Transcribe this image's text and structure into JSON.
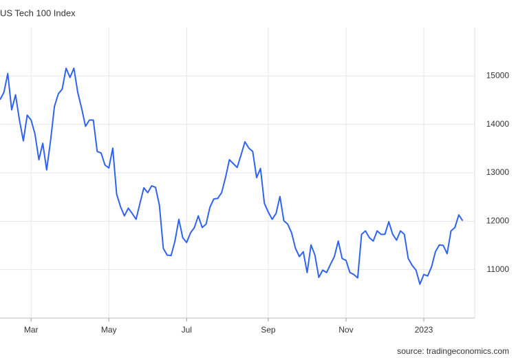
{
  "chart_data": {
    "type": "line",
    "title": "US Tech 100 Index",
    "source": "source: tradingeconomics.com",
    "categories": [
      null,
      null,
      null,
      null,
      null,
      null,
      null,
      null,
      "Mar",
      null,
      null,
      null,
      null,
      null,
      null,
      null,
      null,
      null,
      null,
      null,
      null,
      null,
      null,
      null,
      null,
      null,
      null,
      null,
      "May",
      null,
      null,
      null,
      null,
      null,
      null,
      null,
      null,
      null,
      null,
      null,
      null,
      null,
      null,
      null,
      null,
      null,
      null,
      null,
      "Jul",
      null,
      null,
      null,
      null,
      null,
      null,
      null,
      null,
      null,
      null,
      null,
      null,
      null,
      null,
      null,
      null,
      null,
      null,
      null,
      null,
      "Sep",
      null,
      null,
      null,
      null,
      null,
      null,
      null,
      null,
      null,
      null,
      null,
      null,
      null,
      null,
      null,
      null,
      null,
      null,
      null,
      "Nov",
      null,
      null,
      null,
      null,
      null,
      null,
      null,
      null,
      null,
      null,
      null,
      null,
      null,
      null,
      null,
      null,
      null,
      null,
      null,
      "2023",
      null,
      null,
      null,
      null,
      null,
      null,
      null,
      null,
      null,
      null
    ],
    "series": [
      {
        "name": "US Tech 100 Index",
        "color": "#2f62f0",
        "values": [
          14510,
          14660,
          15050,
          14300,
          14610,
          14090,
          13660,
          14190,
          14090,
          13800,
          13270,
          13610,
          13060,
          13660,
          14370,
          14630,
          14730,
          15160,
          14970,
          15160,
          14660,
          14330,
          13960,
          14090,
          14090,
          13440,
          13410,
          13160,
          13100,
          13510,
          12560,
          12300,
          12110,
          12270,
          12160,
          12040,
          12370,
          12690,
          12590,
          12730,
          12700,
          12330,
          11440,
          11300,
          11290,
          11590,
          12040,
          11660,
          11560,
          11760,
          11870,
          12110,
          11870,
          11940,
          12290,
          12460,
          12470,
          12590,
          12900,
          13270,
          13190,
          13110,
          13370,
          13640,
          13510,
          13440,
          12900,
          13090,
          12370,
          12190,
          12040,
          12160,
          12510,
          12010,
          11940,
          11760,
          11440,
          11270,
          11370,
          10940,
          11510,
          11300,
          10840,
          10990,
          10940,
          11110,
          11270,
          11590,
          11230,
          11190,
          10940,
          10900,
          10830,
          11730,
          11800,
          11660,
          11590,
          11800,
          11730,
          11730,
          11990,
          11730,
          11610,
          11800,
          11730,
          11230,
          11090,
          10990,
          10700,
          10900,
          10870,
          11060,
          11370,
          11510,
          11500,
          11330,
          11800,
          11870,
          12130,
          12010
        ]
      }
    ],
    "ylim": [
      10000,
      16000
    ],
    "yticks": [
      11000,
      12000,
      13000,
      14000,
      15000
    ],
    "grid": true
  }
}
